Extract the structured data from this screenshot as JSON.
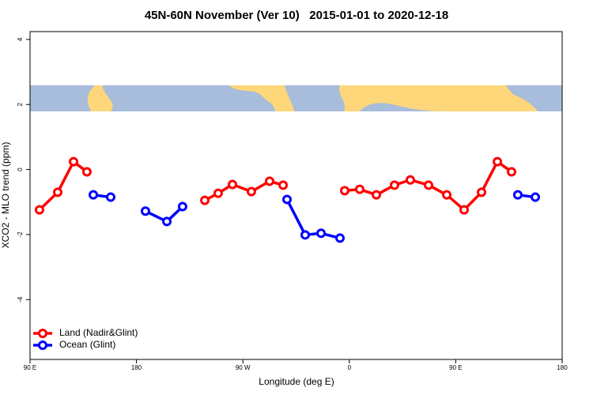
{
  "chart_data": {
    "type": "line",
    "title": "45N-60N November (Ver 10)   2015-01-01 to 2020-12-18",
    "x_label": "Longitude (deg E)",
    "y_label": "XCO2 - MLO trend (ppm)",
    "xlim": [
      90,
      540
    ],
    "ylim": [
      -5.84,
      4.24
    ],
    "xticks": [
      {
        "value": 90,
        "label": "90 E"
      },
      180,
      {
        "value": 270,
        "label": "90 W"
      },
      {
        "value": 360,
        "label": "0"
      },
      {
        "value": 450,
        "label": "90 E"
      },
      {
        "value": 540,
        "label": "180"
      }
    ],
    "yticks": [
      -4,
      -2,
      0,
      2,
      4
    ],
    "legend": "bottom-left",
    "series": [
      {
        "name": "Land (Nadir&Glint)",
        "color": "#ff0000",
        "x": [
          98,
          113.4,
          126.8,
          138.1,
          null,
          237.8,
          249.1,
          261.2,
          277.2,
          292.6,
          304.0,
          null,
          356.1,
          368.8,
          382.9,
          398.2,
          411.6,
          427.0,
          442.4,
          457.1,
          471.8,
          485.2,
          497.2
        ],
        "values": [
          -1.24,
          -0.7,
          0.24,
          -0.07,
          null,
          -0.95,
          -0.73,
          -0.46,
          -0.68,
          -0.36,
          -0.48,
          null,
          -0.65,
          -0.61,
          -0.78,
          -0.48,
          -0.32,
          -0.48,
          -0.78,
          -1.24,
          -0.7,
          0.24,
          -0.07
        ]
      },
      {
        "name": "Ocean (Glint)",
        "color": "#0000ff",
        "x": [
          143.5,
          158.2,
          null,
          187.6,
          205.7,
          219.0,
          null,
          307.3,
          322.7,
          336.1,
          352.1,
          null,
          502.5,
          517.3
        ],
        "values": [
          -0.78,
          -0.85,
          null,
          -1.28,
          -1.6,
          -1.14,
          null,
          -0.92,
          -2.01,
          -1.96,
          -2.11,
          null,
          -0.78,
          -0.85
        ]
      }
    ]
  }
}
